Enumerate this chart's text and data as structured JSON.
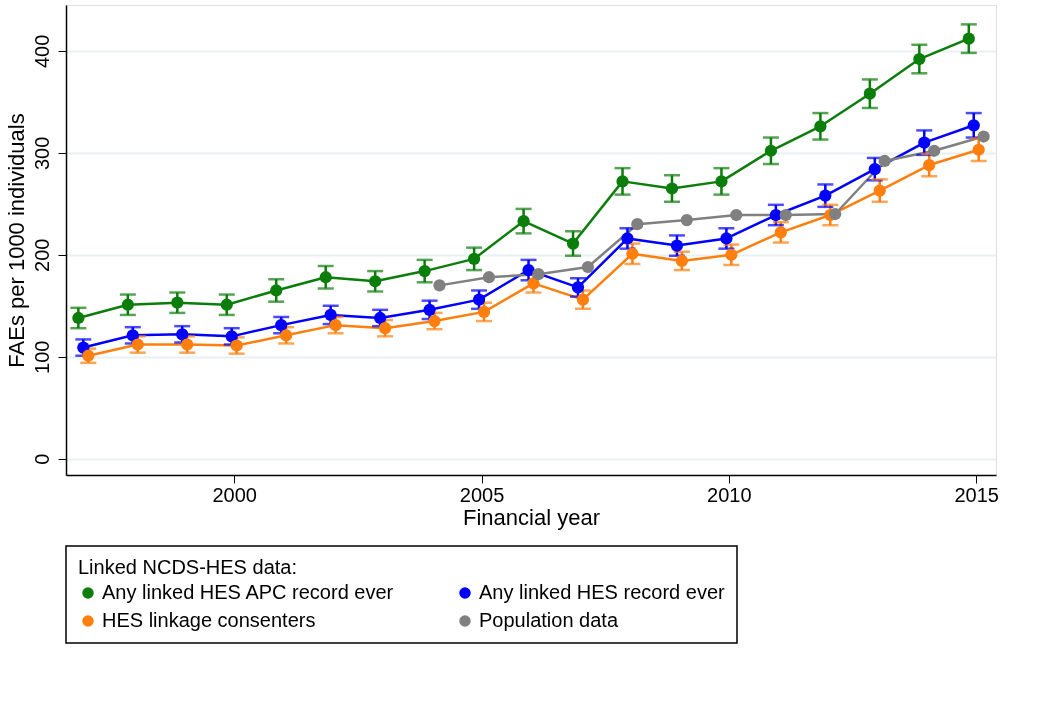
{
  "chart_data": {
    "type": "line",
    "xlabel": "Financial year",
    "ylabel": "FAEs per 1000 individuals",
    "legend_title": "Linked NCDS-HES data:",
    "xlim": [
      1996.6,
      2015.4
    ],
    "xticks": [
      2000,
      2005,
      2010,
      2015
    ],
    "ylim": [
      -16,
      445
    ],
    "yticks": [
      0,
      100,
      200,
      300,
      400
    ],
    "grid": "y",
    "legend": "bottom",
    "marker": "circle",
    "line_style": "solid",
    "series": [
      {
        "name": "Any linked HES APC record ever",
        "color": "#0b7d0b",
        "x": [
          1996.85,
          1997.85,
          1998.85,
          1999.85,
          2000.85,
          2001.85,
          2002.85,
          2003.85,
          2004.85,
          2005.85,
          2006.85,
          2007.85,
          2008.85,
          2009.85,
          2010.85,
          2011.85,
          2012.85,
          2013.85,
          2014.85
        ],
        "values": [
          138,
          151,
          153,
          151,
          165,
          178,
          174,
          184,
          196,
          233,
          211,
          272,
          265,
          272,
          302,
          326,
          358,
          392,
          412
        ],
        "errors": [
          10,
          10,
          10,
          10,
          11,
          11,
          10,
          11,
          11,
          12,
          12,
          13,
          13,
          13,
          13,
          13,
          14,
          14,
          14
        ]
      },
      {
        "name": "Any linked HES record ever",
        "color": "#0000ff",
        "x": [
          1996.95,
          1997.95,
          1998.95,
          1999.95,
          2000.95,
          2001.95,
          2002.95,
          2003.95,
          2004.95,
          2005.95,
          2006.95,
          2007.95,
          2008.95,
          2009.95,
          2010.95,
          2011.95,
          2012.95,
          2013.95,
          2014.95
        ],
        "values": [
          109,
          121,
          122,
          120,
          131,
          141,
          138,
          146,
          156,
          185,
          168,
          216,
          209,
          216,
          239,
          258,
          284,
          310,
          327
        ],
        "errors": [
          8,
          8,
          8,
          8,
          8,
          9,
          8,
          9,
          9,
          10,
          9,
          10,
          10,
          10,
          10,
          11,
          11,
          12,
          12
        ]
      },
      {
        "name": "HES linkage consenters",
        "color": "#ff7f0e",
        "x": [
          1997.05,
          1998.05,
          1999.05,
          2000.05,
          2001.05,
          2002.05,
          2003.05,
          2004.05,
          2005.05,
          2006.05,
          2007.05,
          2008.05,
          2009.05,
          2010.05,
          2011.05,
          2012.05,
          2013.05,
          2014.05,
          2015.05
        ],
        "values": [
          101,
          112,
          112,
          111,
          121,
          131,
          128,
          135,
          144,
          172,
          156,
          201,
          194,
          200,
          222,
          239,
          263,
          288,
          303
        ],
        "errors": [
          7,
          8,
          8,
          8,
          8,
          8,
          8,
          8,
          9,
          9,
          9,
          10,
          9,
          10,
          10,
          10,
          11,
          11,
          11
        ]
      },
      {
        "name": "Population data",
        "color": "#808080",
        "x": [
          2004.15,
          2005.15,
          2006.15,
          2007.15,
          2008.15,
          2009.15,
          2010.15,
          2011.15,
          2012.15,
          2013.15,
          2014.15,
          2015.15
        ],
        "values": [
          170,
          178,
          181,
          188,
          230,
          234,
          239,
          239,
          240,
          292,
          302,
          316
        ]
      }
    ]
  }
}
